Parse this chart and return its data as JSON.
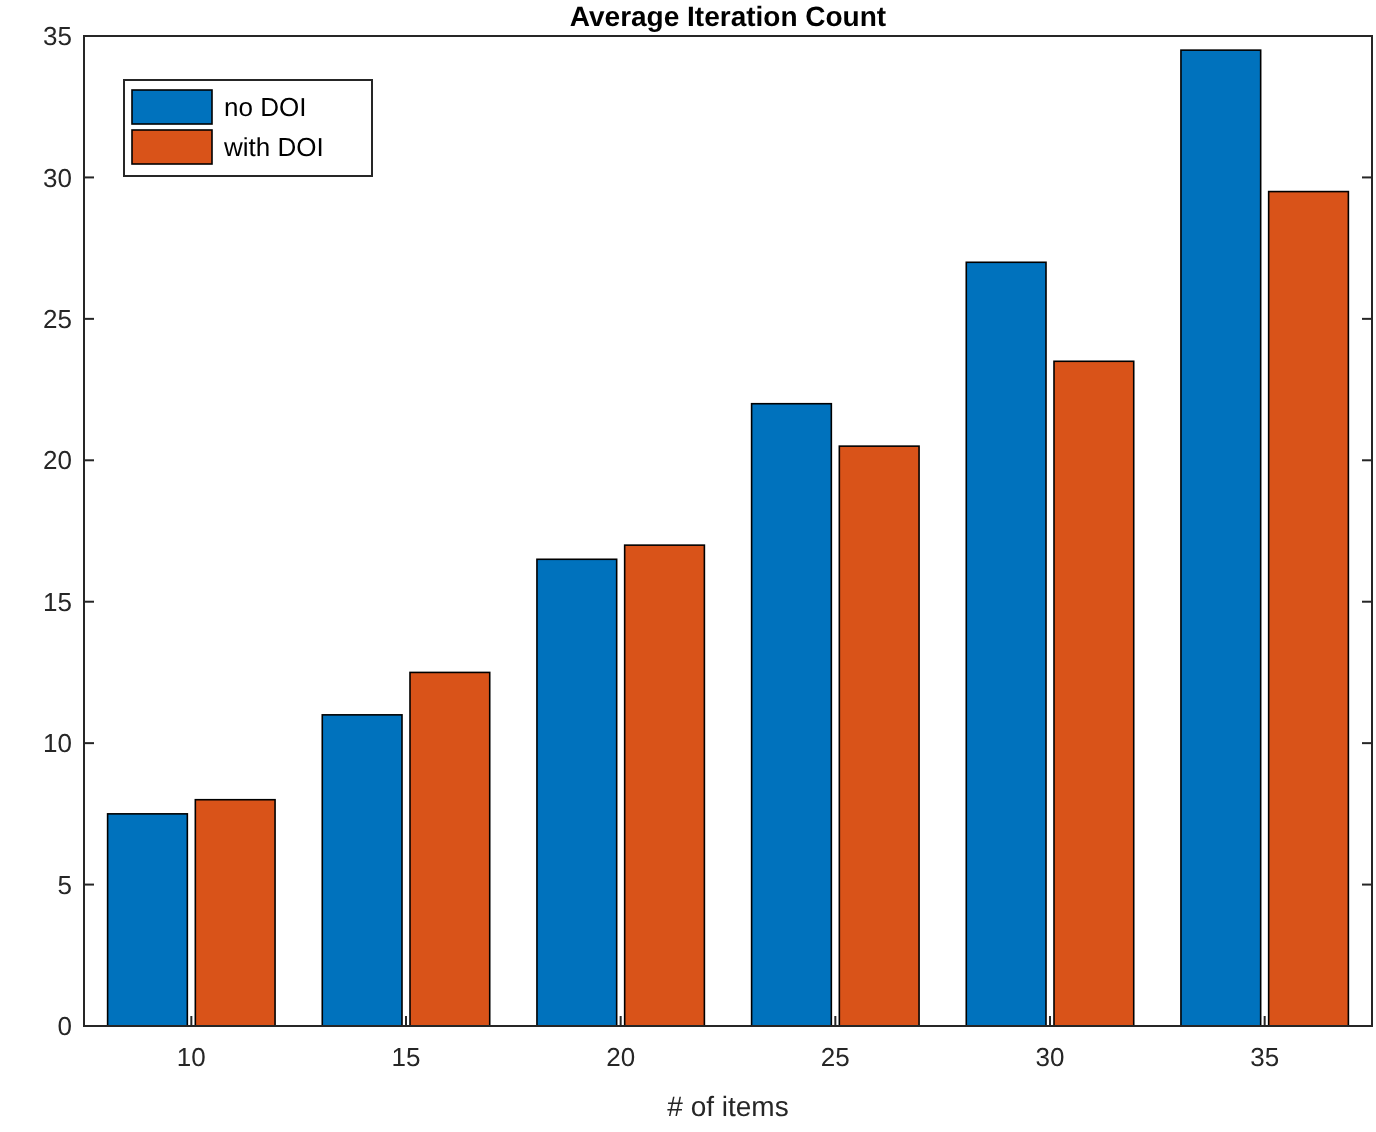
{
  "chart_data": {
    "type": "bar",
    "title": "Average Iteration Count",
    "xlabel": "# of items",
    "categories": [
      "10",
      "15",
      "20",
      "25",
      "30",
      "35"
    ],
    "series": [
      {
        "name": "no DOI",
        "color": "#0072bd",
        "values": [
          7.5,
          11,
          16.5,
          22,
          27,
          34.5
        ]
      },
      {
        "name": "with DOI",
        "color": "#d95319",
        "values": [
          8,
          12.5,
          17,
          20.5,
          23.5,
          29.5
        ]
      }
    ],
    "ylim": [
      0,
      35
    ],
    "yticks": [
      0,
      5,
      10,
      15,
      20,
      25,
      30,
      35
    ],
    "grid": false,
    "legend": "top left"
  }
}
